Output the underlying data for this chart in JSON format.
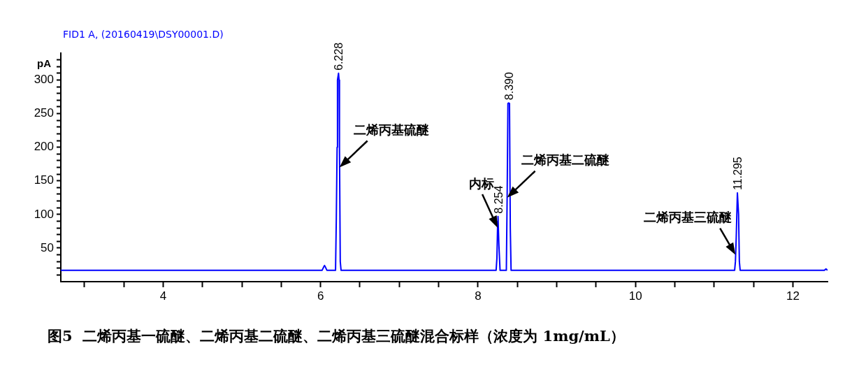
{
  "chart_data": {
    "type": "line",
    "title": "FID1 A, (20160419\\DSY00001.D)",
    "ylabel": "pA",
    "series": [
      {
        "color": "#0000ff",
        "x": [
          2.7,
          6.02,
          6.04,
          6.05,
          6.06,
          6.08,
          6.19,
          6.2,
          6.21,
          6.215,
          6.228,
          6.235,
          6.24,
          6.25,
          6.26,
          8.23,
          8.24,
          8.25,
          8.254,
          8.265,
          8.28,
          8.36,
          8.37,
          8.38,
          8.39,
          8.4,
          8.41,
          8.42,
          11.26,
          11.27,
          11.28,
          11.295,
          11.31,
          11.32,
          11.33,
          12.4,
          12.42,
          12.44
        ],
        "values": [
          17,
          17,
          22,
          24,
          22,
          17,
          17,
          95,
          200,
          300,
          310,
          300,
          200,
          30,
          17,
          17,
          35,
          90,
          97,
          55,
          17,
          17,
          125,
          265,
          266,
          265,
          80,
          17,
          17,
          30,
          65,
          132,
          100,
          30,
          17,
          17,
          19,
          17
        ]
      }
    ],
    "xlim": [
      2.7,
      12.44
    ],
    "xticks": [
      {
        "value": 3,
        "label": null
      },
      {
        "value": 3.5,
        "label": null
      },
      4,
      {
        "value": 4.5,
        "label": null
      },
      {
        "value": 5,
        "label": null
      },
      {
        "value": 5.5,
        "label": null
      },
      6,
      {
        "value": 6.5,
        "label": null
      },
      {
        "value": 7,
        "label": null
      },
      {
        "value": 7.5,
        "label": null
      },
      8,
      {
        "value": 8.5,
        "label": null
      },
      {
        "value": 9,
        "label": null
      },
      {
        "value": 9.5,
        "label": null
      },
      10,
      {
        "value": 10.5,
        "label": null
      },
      {
        "value": 11,
        "label": null
      },
      {
        "value": 11.5,
        "label": null
      },
      12
    ],
    "ylim": [
      0,
      340
    ],
    "yticks": [
      {
        "value": 10,
        "label": null
      },
      {
        "value": 20,
        "label": null
      },
      {
        "value": 30,
        "label": null
      },
      {
        "value": 40,
        "label": null
      },
      50,
      {
        "value": 60,
        "label": null
      },
      {
        "value": 70,
        "label": null
      },
      {
        "value": 80,
        "label": null
      },
      {
        "value": 90,
        "label": null
      },
      100,
      {
        "value": 110,
        "label": null
      },
      {
        "value": 120,
        "label": null
      },
      {
        "value": 130,
        "label": null
      },
      {
        "value": 140,
        "label": null
      },
      150,
      {
        "value": 160,
        "label": null
      },
      {
        "value": 170,
        "label": null
      },
      {
        "value": 180,
        "label": null
      },
      {
        "value": 190,
        "label": null
      },
      200,
      {
        "value": 210,
        "label": null
      },
      {
        "value": 220,
        "label": null
      },
      {
        "value": 230,
        "label": null
      },
      {
        "value": 240,
        "label": null
      },
      250,
      {
        "value": 260,
        "label": null
      },
      {
        "value": 270,
        "label": null
      },
      {
        "value": 280,
        "label": null
      },
      {
        "value": 290,
        "label": null
      },
      300,
      {
        "value": 310,
        "label": null
      },
      {
        "value": 320,
        "label": null
      },
      {
        "value": 330,
        "label": null
      }
    ],
    "grid": false,
    "legend": false,
    "marker": "none",
    "line_style": "solid",
    "annotations": [
      {
        "text": "6.228",
        "x": 6.228,
        "y": 310
      },
      {
        "text": "8.254",
        "x": 8.254,
        "y": 97
      },
      {
        "text": "8.390",
        "x": 8.39,
        "y": 266
      },
      {
        "text": "11.295",
        "x": 11.295,
        "y": 132
      },
      {
        "text": "二烯丙基硫醚",
        "x": 6.24,
        "y": 170
      },
      {
        "text": "内标",
        "x": 8.25,
        "y": 80
      },
      {
        "text": "二烯丙基二硫醚",
        "x": 8.37,
        "y": 125
      },
      {
        "text": "二烯丙基三硫醚",
        "x": 11.27,
        "y": 40
      },
      "图5  二烯丙基一硫醚、二烯丙基二硫醚、二烯丙基三硫醚混合标样（浓度为 1mg/mL）"
    ]
  }
}
